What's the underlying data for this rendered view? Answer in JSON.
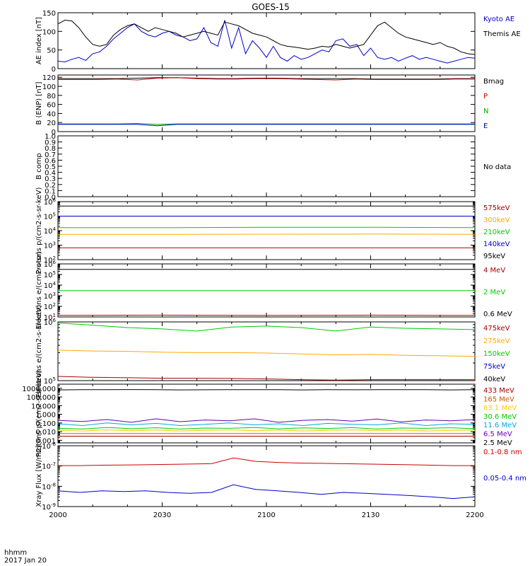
{
  "title": "GOES-15",
  "footer": {
    "label1": "hhmm",
    "label2": "2017 Jan 20"
  },
  "x_ticks": [
    "2000",
    "2030",
    "2100",
    "2130",
    "2200"
  ],
  "chart_data": [
    {
      "type": "line",
      "ylabel": "AE index [nT]",
      "yscale": "linear",
      "ylim": [
        0,
        150
      ],
      "yticks": [
        "0",
        "50",
        "100",
        "150"
      ],
      "legend": [
        {
          "label": "Kyoto AE",
          "color": "#0000cc"
        },
        {
          "label": "Themis AE",
          "color": "#000000"
        }
      ],
      "series": [
        {
          "name": "Kyoto AE",
          "color": "#0000cc",
          "values": [
            20,
            18,
            25,
            30,
            22,
            40,
            45,
            60,
            80,
            95,
            110,
            120,
            100,
            90,
            85,
            95,
            100,
            90,
            85,
            75,
            80,
            110,
            70,
            60,
            130,
            55,
            110,
            40,
            75,
            55,
            30,
            60,
            30,
            20,
            35,
            25,
            30,
            40,
            50,
            45,
            75,
            80,
            60,
            65,
            35,
            55,
            30,
            25,
            30,
            20,
            28,
            35,
            25,
            30,
            25,
            20,
            15,
            20,
            25,
            30,
            28
          ]
        },
        {
          "name": "Themis AE",
          "color": "#000000",
          "values": [
            120,
            130,
            128,
            110,
            85,
            65,
            60,
            65,
            90,
            105,
            115,
            120,
            110,
            100,
            110,
            105,
            100,
            95,
            85,
            90,
            95,
            100,
            95,
            90,
            125,
            120,
            115,
            105,
            95,
            90,
            85,
            75,
            65,
            60,
            58,
            55,
            52,
            55,
            60,
            58,
            65,
            60,
            55,
            60,
            65,
            90,
            115,
            125,
            110,
            95,
            85,
            80,
            75,
            70,
            65,
            70,
            60,
            55,
            45,
            40,
            38
          ]
        }
      ]
    },
    {
      "type": "line",
      "ylabel": "B (ENP) [nT]",
      "yscale": "linear",
      "ylim": [
        0,
        125
      ],
      "yticks": [
        "0",
        "20",
        "40",
        "60",
        "80",
        "100",
        "120"
      ],
      "legend": [
        {
          "label": "Bmag",
          "color": "#000000"
        },
        {
          "label": "P",
          "color": "#cc0000"
        },
        {
          "label": "N",
          "color": "#00aa00"
        },
        {
          "label": "E",
          "color": "#0000cc"
        }
      ],
      "series": [
        {
          "name": "Bmag",
          "color": "#000000",
          "values": [
            117,
            117,
            117,
            117,
            118,
            119,
            119,
            118,
            117,
            117,
            118,
            118,
            117,
            117,
            117,
            117,
            116,
            116,
            116,
            116,
            117,
            117
          ]
        },
        {
          "name": "P",
          "color": "#cc0000",
          "values": [
            115,
            115,
            115,
            116,
            114,
            118,
            119,
            117,
            116,
            116,
            117,
            117,
            116,
            115,
            114,
            116,
            115,
            115,
            115,
            115,
            116,
            116
          ]
        },
        {
          "name": "N",
          "color": "#00aa00",
          "values": [
            17,
            17,
            17,
            17,
            18,
            16,
            17,
            17,
            17,
            17,
            17,
            17,
            17,
            17,
            17,
            17,
            17,
            17,
            17,
            17,
            17,
            17
          ]
        },
        {
          "name": "E",
          "color": "#0000cc",
          "values": [
            16,
            16,
            16,
            16,
            16,
            13,
            16,
            16,
            16,
            16,
            16,
            16,
            16,
            16,
            16,
            16,
            16,
            16,
            16,
            16,
            16,
            16
          ]
        }
      ]
    },
    {
      "type": "line",
      "ylabel": "B comp",
      "yscale": "linear",
      "ylim": [
        0,
        1
      ],
      "yticks": [
        "0.0",
        "0.1",
        "0.2",
        "0.3",
        "0.4",
        "0.5",
        "0.6",
        "0.7",
        "0.8",
        "0.9",
        "1.0"
      ],
      "annotation": "No data",
      "series": []
    },
    {
      "type": "line",
      "ylabel": "Protons p/(cm2-s-sr-keV)",
      "yscale": "log",
      "ylim": [
        100,
        1000000
      ],
      "yticks": [
        "10^2",
        "10^3",
        "10^4",
        "10^5",
        "10^6"
      ],
      "legend": [
        {
          "label": "575keV",
          "color": "#aa0000"
        },
        {
          "label": "300keV",
          "color": "#ffaa00"
        },
        {
          "label": "210keV",
          "color": "#00cc00"
        },
        {
          "label": "140keV",
          "color": "#0000cc"
        },
        {
          "label": "95keV",
          "color": "#000000"
        }
      ],
      "series": [
        {
          "name": "95keV",
          "color": "#000000",
          "values": [
            500000,
            500000,
            500000,
            500000,
            500000
          ]
        },
        {
          "name": "140keV",
          "color": "#0000cc",
          "values": [
            100000,
            100000,
            100000,
            100000,
            100000
          ]
        },
        {
          "name": "210keV",
          "color": "#00cc00",
          "values": [
            16000,
            16000,
            17000,
            17000,
            16000
          ]
        },
        {
          "name": "300keV",
          "color": "#ffaa00",
          "values": [
            5500,
            5500,
            5700,
            5800,
            5600
          ]
        },
        {
          "name": "575keV",
          "color": "#aa0000",
          "values": [
            650,
            650,
            660,
            660,
            650
          ]
        }
      ]
    },
    {
      "type": "line",
      "ylabel": "Electrons e/(cm2-s-sr)",
      "yscale": "log",
      "ylim": [
        10,
        1000000
      ],
      "yticks": [
        "10^1",
        "10^2",
        "10^3",
        "10^4",
        "10^5",
        "10^6"
      ],
      "legend": [
        {
          "label": "4 MeV",
          "color": "#aa0000"
        },
        {
          "label": "2 MeV",
          "color": "#00cc00"
        },
        {
          "label": "0.6 MeV",
          "color": "#000000"
        }
      ],
      "series": [
        {
          "name": "0.6 MeV",
          "color": "#000000",
          "values": [
            300000,
            300000,
            300000,
            300000,
            300000
          ]
        },
        {
          "name": "2 MeV",
          "color": "#00cc00",
          "values": [
            3000,
            3000,
            3000,
            3000,
            3000
          ]
        },
        {
          "name": "4 MeV",
          "color": "#aa0000",
          "values": [
            14,
            15,
            14,
            15,
            14
          ]
        }
      ]
    },
    {
      "type": "line",
      "ylabel": "Electrons e/(cm2-s-sr-keV)",
      "yscale": "log",
      "ylim": [
        100000,
        1000000
      ],
      "yticks": [
        "10^5",
        "10^6"
      ],
      "legend": [
        {
          "label": "475keV",
          "color": "#aa0000"
        },
        {
          "label": "275keV",
          "color": "#ffaa00"
        },
        {
          "label": "150keV",
          "color": "#00cc00"
        },
        {
          "label": "75keV",
          "color": "#0000cc"
        },
        {
          "label": "40keV",
          "color": "#000000"
        }
      ],
      "series": [
        {
          "name": "150keV",
          "color": "#00cc00",
          "values": [
            960000,
            880000,
            800000,
            760000,
            700000,
            820000,
            850000,
            800000,
            700000,
            820000,
            780000,
            760000,
            740000
          ]
        },
        {
          "name": "275keV",
          "color": "#ffaa00",
          "values": [
            330000,
            320000,
            315000,
            305000,
            300000,
            300000,
            295000,
            285000,
            275000,
            280000,
            270000,
            265000,
            260000
          ]
        },
        {
          "name": "475keV",
          "color": "#aa0000",
          "values": [
            118000,
            114000,
            112000,
            110000,
            110000,
            109000,
            107000,
            104000,
            102000,
            104000,
            104000,
            104000,
            104000
          ]
        }
      ]
    },
    {
      "type": "line",
      "ylabel": "Protons p/(cm2-s-sr-keV)",
      "yscale": "log",
      "ylim": [
        0.0005,
        3000
      ],
      "yticks": [
        "0.001",
        "0.010",
        "0.100",
        "1.000",
        "10.000",
        "100.000",
        "1000.000"
      ],
      "legend": [
        {
          "label": "433 MeV",
          "color": "#aa0000"
        },
        {
          "label": "165 MeV",
          "color": "#cc5500"
        },
        {
          "label": "63.1 MeV",
          "color": "#ffcc00"
        },
        {
          "label": "30.6 MeV",
          "color": "#00cc00"
        },
        {
          "label": "11.6 MeV",
          "color": "#00aadd"
        },
        {
          "label": "6.5 MeV",
          "color": "#6600aa"
        },
        {
          "label": "2.5 MeV",
          "color": "#000000"
        }
      ],
      "series": [
        {
          "name": "2.5 MeV",
          "color": "#000000",
          "values": [
            650,
            700,
            700,
            720,
            700,
            650,
            680,
            700,
            690,
            700,
            650,
            700,
            680,
            700,
            690,
            700,
            660,
            700
          ]
        },
        {
          "name": "6.5 MeV",
          "color": "#6600aa",
          "values": [
            0.2,
            0.15,
            0.25,
            0.12,
            0.3,
            0.14,
            0.22,
            0.18,
            0.3,
            0.12,
            0.2,
            0.25,
            0.16,
            0.28,
            0.13,
            0.22,
            0.18,
            0.25
          ]
        },
        {
          "name": "11.6 MeV",
          "color": "#00aadd",
          "values": [
            0.08,
            0.05,
            0.1,
            0.06,
            0.09,
            0.05,
            0.07,
            0.1,
            0.06,
            0.08,
            0.05,
            0.09,
            0.07,
            0.06,
            0.1,
            0.05,
            0.08,
            0.07
          ]
        },
        {
          "name": "30.6 MeV",
          "color": "#00cc00",
          "values": [
            0.025,
            0.02,
            0.03,
            0.022,
            0.028,
            0.02,
            0.026,
            0.024,
            0.03,
            0.021,
            0.027,
            0.023,
            0.029,
            0.02,
            0.026,
            0.024,
            0.028,
            0.022
          ]
        },
        {
          "name": "63.1 MeV",
          "color": "#ffcc00",
          "values": [
            0.015,
            0.012,
            0.016,
            0.013,
            0.015,
            0.012,
            0.014,
            0.016,
            0.013,
            0.015,
            0.012,
            0.014,
            0.016,
            0.013,
            0.015,
            0.012,
            0.014,
            0.015
          ]
        },
        {
          "name": "165 MeV",
          "color": "#cc5500",
          "values": [
            0.006,
            0.006,
            0.006,
            0.006,
            0.006,
            0.006,
            0.006,
            0.006,
            0.006,
            0.006,
            0.006,
            0.006,
            0.006,
            0.006,
            0.006,
            0.006,
            0.006,
            0.006
          ]
        },
        {
          "name": "433 MeV",
          "color": "#aa0000",
          "values": [
            0.003,
            0.003,
            0.003,
            0.003,
            0.003,
            0.003,
            0.003,
            0.003,
            0.003,
            0.003,
            0.003,
            0.003,
            0.003,
            0.003,
            0.003,
            0.003,
            0.003,
            0.003
          ]
        }
      ]
    },
    {
      "type": "line",
      "ylabel": "Xray Flux [W/m2]",
      "yscale": "log",
      "ylim": [
        1e-09,
        1e-06
      ],
      "yticks": [
        "10^-9",
        "10^-8",
        "10^-7",
        "10^-6"
      ],
      "legend": [
        {
          "label": "0.1-0.8 nm",
          "color": "#cc0000"
        },
        {
          "label": "0.05-0.4 nm",
          "color": "#0000cc"
        }
      ],
      "series": [
        {
          "name": "0.1-0.8 nm",
          "color": "#cc0000",
          "values": [
            1.05e-07,
            1.05e-07,
            1.1e-07,
            1.12e-07,
            1.15e-07,
            1.2e-07,
            1.25e-07,
            1.3e-07,
            2.5e-07,
            1.7e-07,
            1.5e-07,
            1.4e-07,
            1.35e-07,
            1.3e-07,
            1.25e-07,
            1.2e-07,
            1.15e-07,
            1.1e-07,
            1.05e-07,
            1.05e-07
          ]
        },
        {
          "name": "0.05-0.4 nm",
          "color": "#0000cc",
          "values": [
            6e-09,
            5e-09,
            6e-09,
            5.5e-09,
            6e-09,
            5e-09,
            4.5e-09,
            5e-09,
            1.2e-08,
            7e-09,
            6e-09,
            5e-09,
            4e-09,
            5e-09,
            4.5e-09,
            4e-09,
            3.5e-09,
            3e-09,
            2.5e-09,
            3e-09
          ]
        }
      ]
    }
  ]
}
